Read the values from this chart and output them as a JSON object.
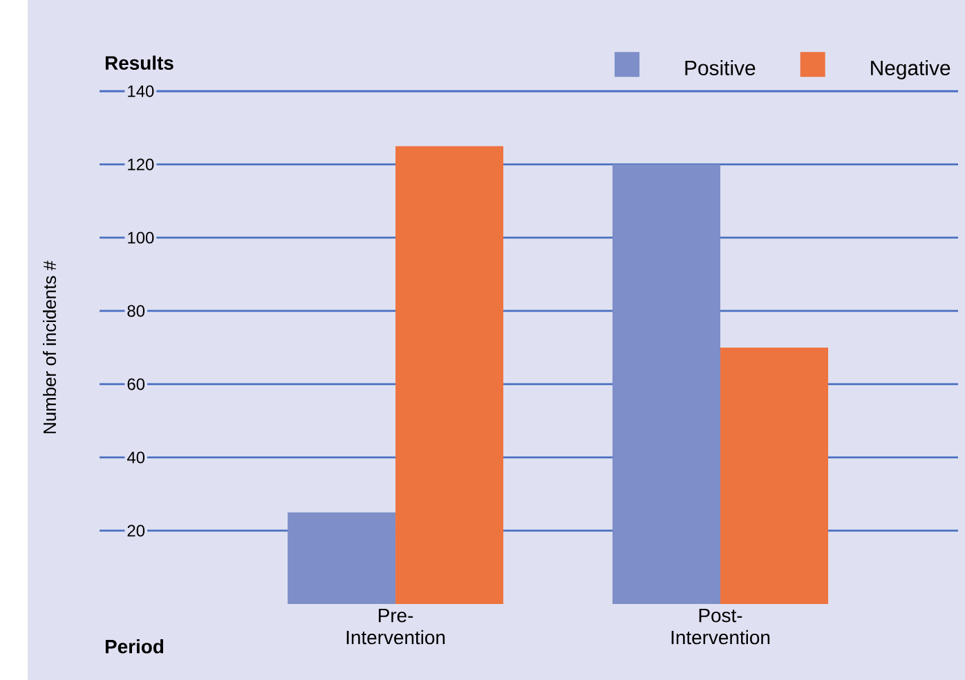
{
  "chart_data": {
    "type": "bar",
    "title": "Results",
    "xlabel": "Period",
    "ylabel": "Number of incidents #",
    "categories": [
      "Pre-Intervention",
      "Post-Intervention"
    ],
    "series": [
      {
        "name": "Positive",
        "color": "#7d8ec8",
        "values": [
          25,
          120
        ]
      },
      {
        "name": "Negative",
        "color": "#ed733f",
        "values": [
          125,
          70
        ]
      }
    ],
    "ylim": [
      0,
      140
    ],
    "yticks": [
      20,
      40,
      60,
      80,
      100,
      120,
      140
    ],
    "grid": "y",
    "legend": "top right"
  }
}
